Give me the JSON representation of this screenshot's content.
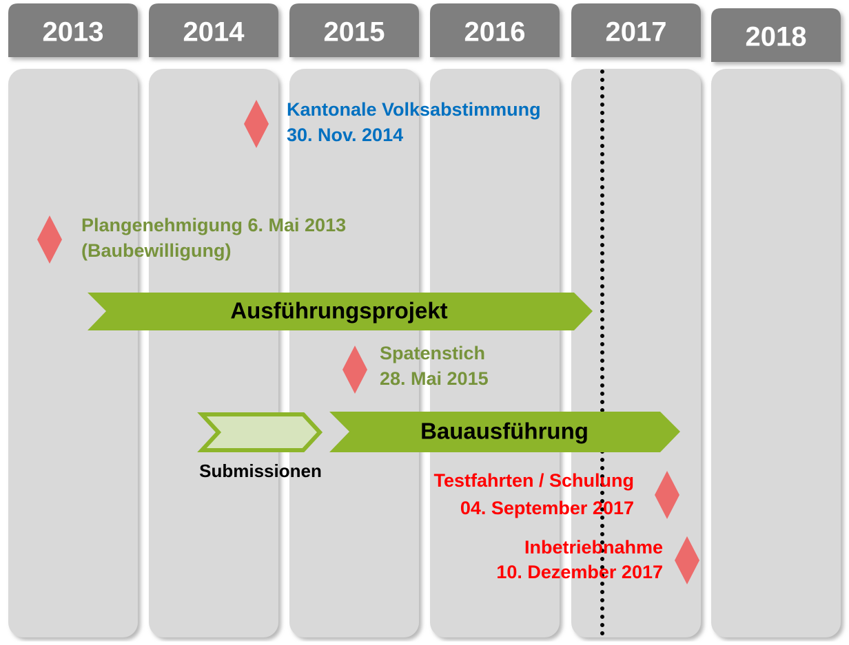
{
  "years": [
    "2013",
    "2014",
    "2015",
    "2016",
    "2017",
    "2018"
  ],
  "milestones": [
    {
      "lines": [
        "Kantonale Volksabstimmung",
        "30. Nov. 2014"
      ]
    },
    {
      "lines": [
        "Plangenehmigung 6. Mai 2013",
        "(Baubewilligung)"
      ]
    },
    {
      "lines": [
        "Spatenstich",
        "28. Mai 2015"
      ]
    },
    {
      "lines": [
        "Testfahrten / Schulung",
        "04. September 2017"
      ]
    },
    {
      "lines": [
        "Inbetriebnahme",
        "10. Dezember 2017"
      ]
    }
  ],
  "phases": [
    {
      "label": "Ausführungsprojekt"
    },
    {
      "label": "Submissionen"
    },
    {
      "label": "Bauausführung"
    }
  ]
}
